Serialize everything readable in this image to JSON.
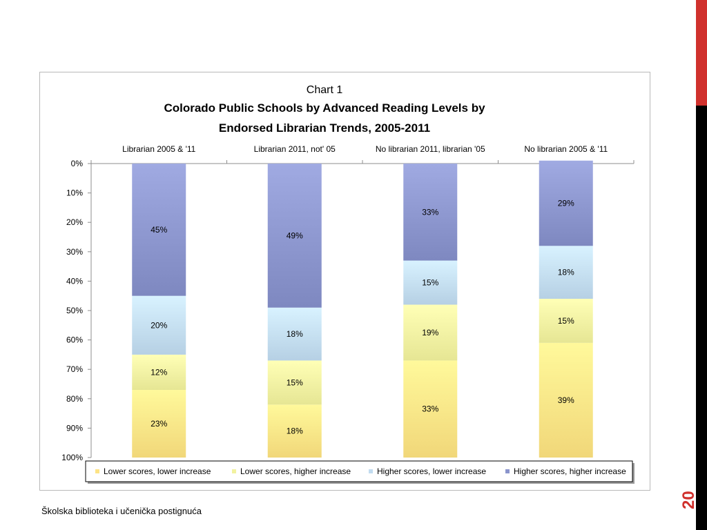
{
  "slide": {
    "footer": "Školska biblioteka i učenička postignuća",
    "page_number": "20",
    "accent_color": "#d0312d"
  },
  "chart_data": {
    "type": "bar",
    "stacked": true,
    "orientation": "vertical",
    "title_line1": "Chart 1",
    "title_line2": "Colorado Public Schools by Advanced Reading Levels by",
    "title_line3": "Endorsed Librarian Trends, 2005-2011",
    "categories": [
      "Librarian 2005 & '11",
      "Librarian 2011, not' 05",
      "No librarian 2011, librarian '05",
      "No librarian 2005 & '11"
    ],
    "y_ticks": [
      "0%",
      "10%",
      "20%",
      "30%",
      "40%",
      "50%",
      "60%",
      "70%",
      "80%",
      "90%",
      "100%"
    ],
    "ylim": [
      0,
      100
    ],
    "y_axis_inverted": true,
    "x_axis_position": "top",
    "gridlines": false,
    "legend_position": "bottom",
    "series": [
      {
        "name": "Lower scores, lower increase",
        "color": "#fde385",
        "values": [
          23,
          18,
          33,
          39
        ],
        "labels": [
          "23%",
          "18%",
          "33%",
          "39%"
        ]
      },
      {
        "name": "Lower scores, higher increase",
        "color": "#f2f2a0",
        "values": [
          12,
          15,
          19,
          15
        ],
        "labels": [
          "12%",
          "15%",
          "19%",
          "15%"
        ]
      },
      {
        "name": "Higher scores, lower increase",
        "color": "#c2dcf0",
        "values": [
          20,
          18,
          15,
          18
        ],
        "labels": [
          "20%",
          "18%",
          "15%",
          "18%"
        ]
      },
      {
        "name": "Higher scores, higher increase",
        "color": "#8a94cc",
        "values": [
          45,
          49,
          33,
          29
        ],
        "labels": [
          "45%",
          "49%",
          "33%",
          "29%"
        ]
      }
    ]
  }
}
